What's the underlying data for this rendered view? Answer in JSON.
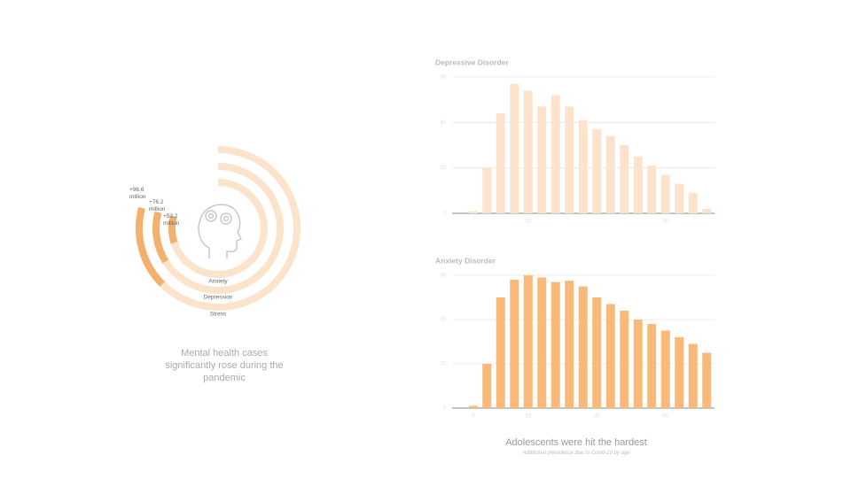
{
  "chart_data": [
    {
      "type": "radial-bar",
      "caption": "Mental health cases significantly rose during the pandemic",
      "categories": [
        "Anxiety",
        "Depression",
        "Stress"
      ],
      "values": [
        53.2,
        76.2,
        96.6
      ],
      "value_labels": [
        "+53.2 million",
        "+76.2 million",
        "+96.6 million"
      ],
      "color": "#f4b06d",
      "track_color": "#fbe3cc"
    },
    {
      "type": "bar",
      "title": "Depressive Disorder",
      "categories": [
        null,
        null,
        null,
        null,
        "20",
        null,
        null,
        null,
        null,
        null,
        null,
        null,
        null,
        null,
        "60",
        null,
        null,
        null
      ],
      "values": [
        1,
        20,
        44,
        57,
        54,
        47,
        52,
        47,
        41,
        37,
        34,
        30,
        25,
        21,
        17,
        13,
        9,
        2
      ],
      "color": "#fde3cc",
      "ylim": [
        0,
        60
      ],
      "yticks": [
        0,
        20,
        40,
        60
      ],
      "grid": true
    },
    {
      "type": "bar",
      "title": "Anxiety Disorder",
      "categories": [
        "0",
        null,
        null,
        null,
        "20",
        null,
        null,
        null,
        null,
        "40",
        null,
        null,
        null,
        null,
        "60",
        null,
        null,
        null
      ],
      "values": [
        1,
        20,
        50,
        58,
        60,
        59,
        57,
        57.5,
        55,
        50,
        47,
        44,
        40,
        38,
        35,
        32,
        29,
        25
      ],
      "color": "#f9b978",
      "ylim": [
        0,
        60
      ],
      "yticks": [
        0,
        20,
        40,
        60
      ],
      "grid": true
    }
  ],
  "footer": {
    "title": "Adolescents were hit the hardest",
    "subtitle": "Additional prevalence due to Covid-19 by age"
  }
}
